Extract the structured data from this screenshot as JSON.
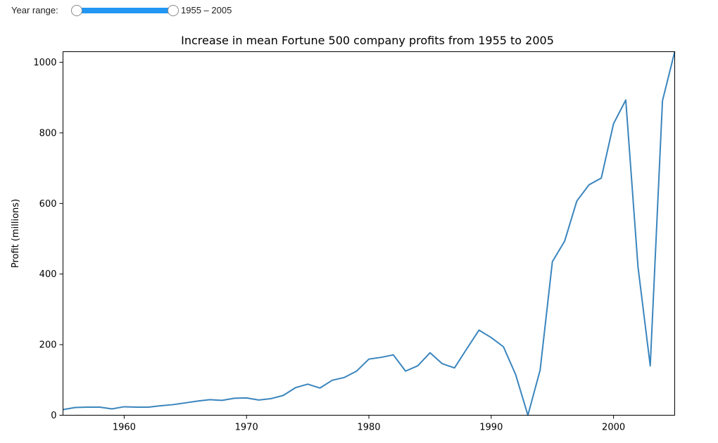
{
  "controls": {
    "year_range_label": "Year range:",
    "year_range_value": "1955 – 2005",
    "year_min": 1955,
    "year_max": 2005,
    "accent_color": "#2196f3"
  },
  "chart_data": {
    "type": "line",
    "title": "Increase in mean Fortune 500 company profits from 1955 to 2005",
    "xlabel": "",
    "ylabel": "Profit (millions)",
    "xlim": [
      1955,
      2005
    ],
    "ylim": [
      0,
      1030
    ],
    "xticks": [
      1960,
      1970,
      1980,
      1990,
      2000
    ],
    "yticks": [
      0,
      200,
      400,
      600,
      800,
      1000
    ],
    "grid": false,
    "line_color": "#3a85bd",
    "series": [
      {
        "x": [
          1955,
          1956,
          1957,
          1958,
          1959,
          1960,
          1961,
          1962,
          1963,
          1964,
          1965,
          1966,
          1967,
          1968,
          1969,
          1970,
          1971,
          1972,
          1973,
          1974,
          1975,
          1976,
          1977,
          1978,
          1979,
          1980,
          1981,
          1982,
          1983,
          1984,
          1985,
          1986,
          1987,
          1988,
          1989,
          1990,
          1991,
          1992,
          1993,
          1994,
          1995,
          1996,
          1997,
          1998,
          1999,
          2000,
          2001,
          2002,
          2003,
          2004,
          2005
        ],
        "values": [
          16,
          22,
          23,
          23,
          18,
          24,
          23,
          23,
          27,
          30,
          35,
          40,
          44,
          42,
          48,
          49,
          43,
          47,
          56,
          78,
          88,
          77,
          99,
          107,
          125,
          159,
          164,
          171,
          125,
          140,
          177,
          146,
          134,
          188,
          241,
          220,
          194,
          115,
          0,
          128,
          435,
          493,
          607,
          653,
          672,
          826,
          893,
          420,
          140,
          891,
          1030
        ]
      }
    ]
  }
}
